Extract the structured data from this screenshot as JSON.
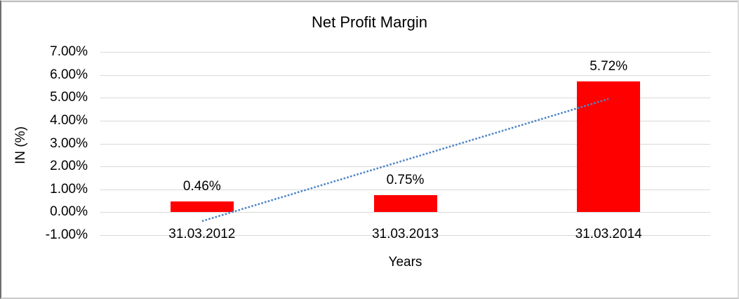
{
  "chart_data": {
    "type": "bar",
    "title": "Net Profit Margin",
    "xlabel": "Years",
    "ylabel": "IN (%)",
    "categories": [
      "31.03.2012",
      "31.03.2013",
      "31.03.2014"
    ],
    "values": [
      0.46,
      0.75,
      5.72
    ],
    "data_labels": [
      "0.46%",
      "0.75%",
      "5.72%"
    ],
    "series_name": "Net Profit Margin",
    "bar_color": "#ff0000",
    "ylim": [
      -1,
      7
    ],
    "y_tick_values": [
      7,
      6,
      5,
      4,
      3,
      2,
      1,
      0,
      -1
    ],
    "y_tick_labels": [
      "7.00%",
      "6.00%",
      "5.00%",
      "4.00%",
      "3.00%",
      "2.00%",
      "1.00%",
      "0.00%",
      "-1.00%"
    ],
    "grid": true,
    "gridline_color": "#d9d9d9",
    "legend": "none",
    "trendline": {
      "type": "linear",
      "style": "dotted",
      "color": "#4f86c6",
      "start": {
        "category_index": 0,
        "value": -0.39
      },
      "end": {
        "category_index": 2,
        "value": 4.95
      }
    }
  }
}
